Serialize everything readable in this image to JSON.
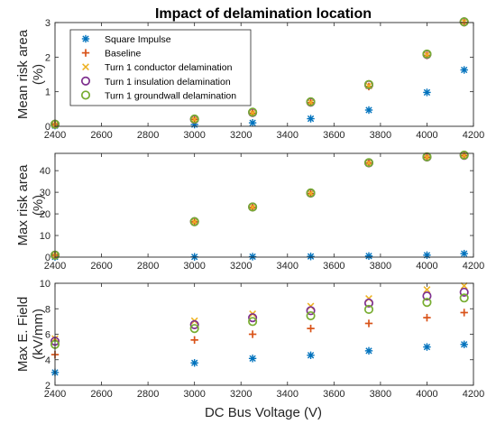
{
  "figure": {
    "title": "Impact of delamination location",
    "xlabel": "DC Bus Voltage (V)"
  },
  "chart_data": [
    {
      "type": "scatter",
      "title": "Impact of delamination location",
      "xlabel": "",
      "ylabel": [
        "Mean risk area",
        "(%)"
      ],
      "xlim": [
        2400,
        4200
      ],
      "ylim": [
        0,
        3
      ],
      "xticks": [
        2400,
        2600,
        2800,
        3000,
        3200,
        3400,
        3600,
        3800,
        4000,
        4200
      ],
      "yticks": [
        0,
        1,
        2,
        3
      ],
      "legend": "top-left",
      "x": [
        2400,
        3000,
        3250,
        3500,
        3750,
        4000,
        4160
      ],
      "series": [
        {
          "name": "Square Impulse",
          "marker": "asterisk",
          "color": "#0072BD",
          "values": [
            0.02,
            0.05,
            0.1,
            0.22,
            0.47,
            0.98,
            1.63
          ]
        },
        {
          "name": "Baseline",
          "marker": "plus",
          "color": "#D95319",
          "values": [
            0.05,
            0.2,
            0.38,
            0.68,
            1.15,
            2.05,
            3.0
          ]
        },
        {
          "name": "Turn 1 conductor delamination",
          "marker": "x",
          "color": "#EDB120",
          "values": [
            0.05,
            0.2,
            0.39,
            0.69,
            1.17,
            2.07,
            3.02
          ]
        },
        {
          "name": "Turn 1 insulation delamination",
          "marker": "circle",
          "color": "#7E2F8E",
          "values": [
            0.06,
            0.2,
            0.4,
            0.7,
            1.2,
            2.08,
            3.02
          ]
        },
        {
          "name": "Turn 1 groundwall delamination",
          "marker": "circle",
          "color": "#77AC30",
          "values": [
            0.06,
            0.21,
            0.41,
            0.71,
            1.21,
            2.09,
            3.02
          ]
        }
      ]
    },
    {
      "type": "scatter",
      "xlabel": "",
      "ylabel": [
        "Max risk area",
        "(%)"
      ],
      "xlim": [
        2400,
        4200
      ],
      "ylim": [
        0,
        48
      ],
      "xticks": [
        2400,
        2600,
        2800,
        3000,
        3200,
        3400,
        3600,
        3800,
        4000,
        4200
      ],
      "yticks": [
        0,
        10,
        20,
        30,
        40
      ],
      "x": [
        2400,
        3000,
        3250,
        3500,
        3750,
        4000,
        4160
      ],
      "series": [
        {
          "name": "Square Impulse",
          "marker": "asterisk",
          "color": "#0072BD",
          "values": [
            0.1,
            0.1,
            0.2,
            0.3,
            0.5,
            0.9,
            1.6
          ]
        },
        {
          "name": "Baseline",
          "marker": "plus",
          "color": "#D95319",
          "values": [
            0.8,
            16.3,
            23.0,
            29.4,
            43.5,
            46.2,
            47.0
          ]
        },
        {
          "name": "Turn 1 conductor delamination",
          "marker": "x",
          "color": "#EDB120",
          "values": [
            0.8,
            16.3,
            23.1,
            29.5,
            43.6,
            46.3,
            47.1
          ]
        },
        {
          "name": "Turn 1 insulation delamination",
          "marker": "circle",
          "color": "#7E2F8E",
          "values": [
            0.9,
            16.4,
            23.2,
            29.6,
            43.6,
            46.3,
            47.1
          ]
        },
        {
          "name": "Turn 1 groundwall delamination",
          "marker": "circle",
          "color": "#77AC30",
          "values": [
            0.9,
            16.4,
            23.2,
            29.7,
            43.7,
            46.4,
            47.2
          ]
        }
      ]
    },
    {
      "type": "scatter",
      "xlabel": "DC Bus Voltage (V)",
      "ylabel": [
        "Max E. Field",
        "(kV/mm)"
      ],
      "xlim": [
        2400,
        4200
      ],
      "ylim": [
        2,
        10
      ],
      "xticks": [
        2400,
        2600,
        2800,
        3000,
        3200,
        3400,
        3600,
        3800,
        4000,
        4200
      ],
      "yticks": [
        2,
        4,
        6,
        8,
        10
      ],
      "x": [
        2400,
        3000,
        3250,
        3500,
        3750,
        4000,
        4160
      ],
      "series": [
        {
          "name": "Square Impulse",
          "marker": "asterisk",
          "color": "#0072BD",
          "values": [
            3.0,
            3.75,
            4.1,
            4.35,
            4.7,
            5.0,
            5.2
          ]
        },
        {
          "name": "Baseline",
          "marker": "plus",
          "color": "#D95319",
          "values": [
            4.4,
            5.55,
            6.0,
            6.45,
            6.85,
            7.3,
            7.7
          ]
        },
        {
          "name": "Turn 1 conductor delamination",
          "marker": "x",
          "color": "#EDB120",
          "values": [
            5.65,
            7.05,
            7.6,
            8.2,
            8.8,
            9.5,
            9.8
          ]
        },
        {
          "name": "Turn 1 insulation delamination",
          "marker": "circle",
          "color": "#7E2F8E",
          "values": [
            5.45,
            6.75,
            7.3,
            7.85,
            8.45,
            9.0,
            9.3
          ]
        },
        {
          "name": "Turn 1 groundwall delamination",
          "marker": "circle",
          "color": "#77AC30",
          "values": [
            5.2,
            6.45,
            7.0,
            7.45,
            7.95,
            8.5,
            8.85
          ]
        }
      ]
    }
  ]
}
